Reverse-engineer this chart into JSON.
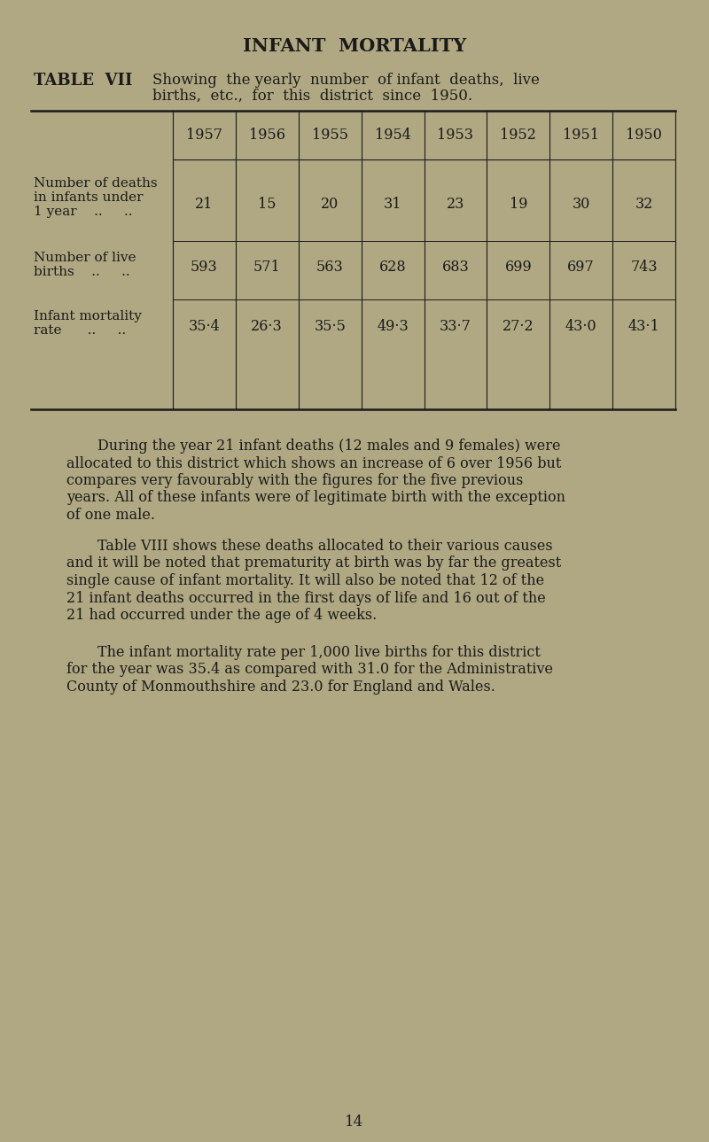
{
  "bg_color": "#b0a882",
  "title": "INFANT  MORTALITY",
  "table_label": "TABLE  VII",
  "table_caption_line1": "Showing  the yearly  number  of infant  deaths,  live",
  "table_caption_line2": "births,  etc.,  for  this  district  since  1950.",
  "years": [
    "1957",
    "1956",
    "1955",
    "1954",
    "1953",
    "1952",
    "1951",
    "1950"
  ],
  "row1_label_lines": [
    "Number of deaths",
    "in infants under",
    "1 year    ..     .."
  ],
  "row1_values": [
    "21",
    "15",
    "20",
    "31",
    "23",
    "19",
    "30",
    "32"
  ],
  "row2_label_lines": [
    "Number of live",
    "births    ..     .."
  ],
  "row2_values": [
    "593",
    "571",
    "563",
    "628",
    "683",
    "699",
    "697",
    "743"
  ],
  "row3_label_lines": [
    "Infant mortality",
    "rate      ..     .."
  ],
  "row3_values": [
    "35·4",
    "26·3",
    "35·5",
    "49·3",
    "33·7",
    "27·2",
    "43·0",
    "43·1"
  ],
  "para1_line1": "During the year 21 infant deaths (12 males and 9 females) were",
  "para1_rest": "allocated to this district which shows an increase of 6 over 1956 but\ncompares very favourably with the figures for the five previous\nyears. All of these infants were of legitimate birth with the exception\nof one male.",
  "para2_line1": "Table VIII shows these deaths allocated to their various causes",
  "para2_rest": "and it will be noted that prematurity at birth was by far the greatest\nsingle cause of infant mortality. It will also be noted that 12 of the\n21 infant deaths occurred in the first days of life and 16 out of the\n21 had occurred under the age of 4 weeks.",
  "para3_line1": "The infant mortality rate per 1,000 live births for this district",
  "para3_rest": "for the year was 35.4 as compared with 31.0 for the Administrative\nCounty of Monmouthshire and 23.0 for England and Wales.",
  "page_number": "14",
  "text_color": "#1a1a1a"
}
